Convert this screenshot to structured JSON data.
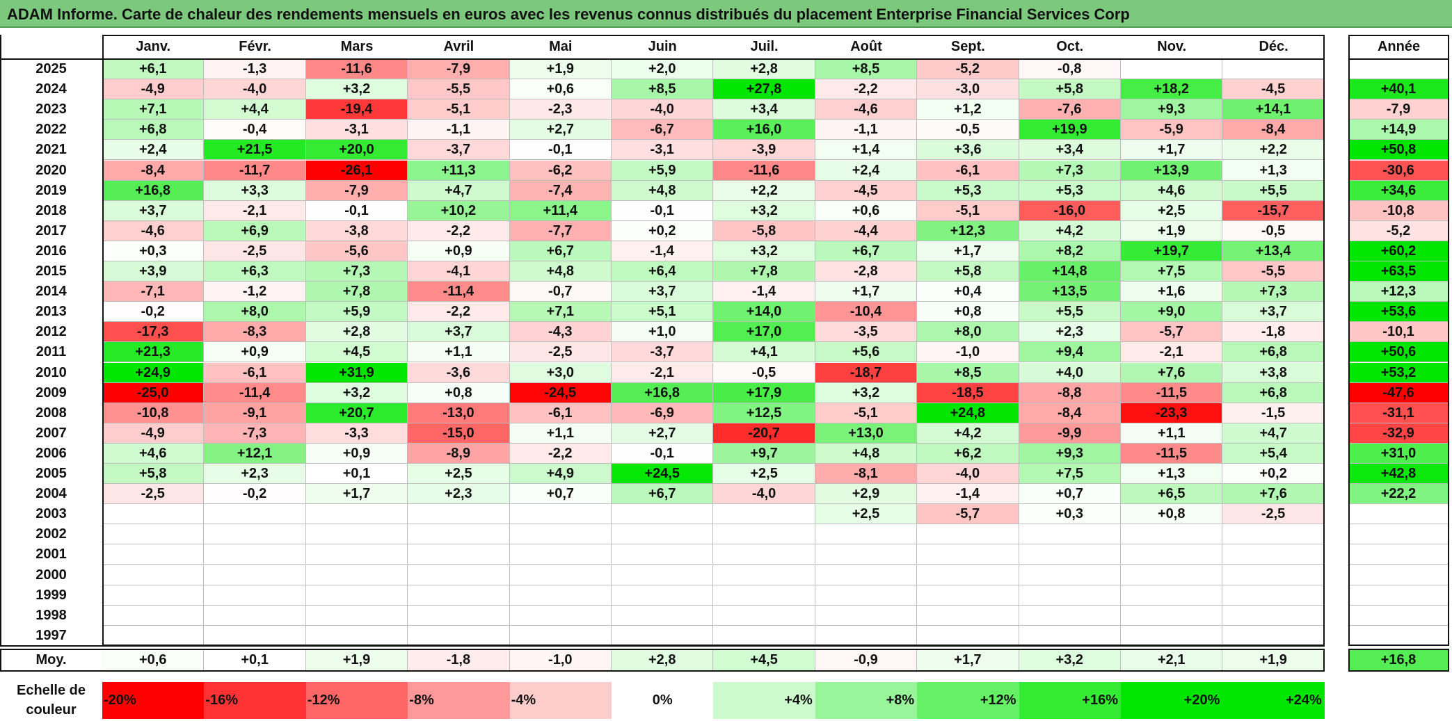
{
  "title": "ADAM Informe. Carte de chaleur des rendements mensuels en euros avec les revenus connus distribués du placement Enterprise Financial Services Corp",
  "chart_data": {
    "type": "heatmap",
    "title": "ADAM Informe. Carte de chaleur des rendements mensuels en euros avec les revenus connus distribués du placement Enterprise Financial Services Corp",
    "columns": [
      "Janv.",
      "Févr.",
      "Mars",
      "Avril",
      "Mai",
      "Juin",
      "Juil.",
      "Août",
      "Sept.",
      "Oct.",
      "Nov.",
      "Déc."
    ],
    "year_column_label": "Année",
    "rows": [
      {
        "year": "2025",
        "values": [
          "+6,1",
          "-1,3",
          "-11,6",
          "-7,9",
          "+1,9",
          "+2,0",
          "+2,8",
          "+8,5",
          "-5,2",
          "-0,8",
          "",
          ""
        ],
        "annual": ""
      },
      {
        "year": "2024",
        "values": [
          "-4,9",
          "-4,0",
          "+3,2",
          "-5,5",
          "+0,6",
          "+8,5",
          "+27,8",
          "-2,2",
          "-3,0",
          "+5,8",
          "+18,2",
          "-4,5"
        ],
        "annual": "+40,1"
      },
      {
        "year": "2023",
        "values": [
          "+7,1",
          "+4,4",
          "-19,4",
          "-5,1",
          "-2,3",
          "-4,0",
          "+3,4",
          "-4,6",
          "+1,2",
          "-7,6",
          "+9,3",
          "+14,1"
        ],
        "annual": "-7,9"
      },
      {
        "year": "2022",
        "values": [
          "+6,8",
          "-0,4",
          "-3,1",
          "-1,1",
          "+2,7",
          "-6,7",
          "+16,0",
          "-1,1",
          "-0,5",
          "+19,9",
          "-5,9",
          "-8,4"
        ],
        "annual": "+14,9"
      },
      {
        "year": "2021",
        "values": [
          "+2,4",
          "+21,5",
          "+20,0",
          "-3,7",
          "-0,1",
          "-3,1",
          "-3,9",
          "+1,4",
          "+3,6",
          "+3,4",
          "+1,7",
          "+2,2"
        ],
        "annual": "+50,8"
      },
      {
        "year": "2020",
        "values": [
          "-8,4",
          "-11,7",
          "-26,1",
          "+11,3",
          "-6,2",
          "+5,9",
          "-11,6",
          "+2,4",
          "-6,1",
          "+7,3",
          "+13,9",
          "+1,3"
        ],
        "annual": "-30,6"
      },
      {
        "year": "2019",
        "values": [
          "+16,8",
          "+3,3",
          "-7,9",
          "+4,7",
          "-7,4",
          "+4,8",
          "+2,2",
          "-4,5",
          "+5,3",
          "+5,3",
          "+4,6",
          "+5,5"
        ],
        "annual": "+34,6"
      },
      {
        "year": "2018",
        "values": [
          "+3,7",
          "-2,1",
          "-0,1",
          "+10,2",
          "+11,4",
          "-0,1",
          "+3,2",
          "+0,6",
          "-5,1",
          "-16,0",
          "+2,5",
          "-15,7"
        ],
        "annual": "-10,8"
      },
      {
        "year": "2017",
        "values": [
          "-4,6",
          "+6,9",
          "-3,8",
          "-2,2",
          "-7,7",
          "+0,2",
          "-5,8",
          "-4,4",
          "+12,3",
          "+4,2",
          "+1,9",
          "-0,5"
        ],
        "annual": "-5,2"
      },
      {
        "year": "2016",
        "values": [
          "+0,3",
          "-2,5",
          "-5,6",
          "+0,9",
          "+6,7",
          "-1,4",
          "+3,2",
          "+6,7",
          "+1,7",
          "+8,2",
          "+19,7",
          "+13,4"
        ],
        "annual": "+60,2"
      },
      {
        "year": "2015",
        "values": [
          "+3,9",
          "+6,3",
          "+7,3",
          "-4,1",
          "+4,8",
          "+6,4",
          "+7,8",
          "-2,8",
          "+5,8",
          "+14,8",
          "+7,5",
          "-5,5"
        ],
        "annual": "+63,5"
      },
      {
        "year": "2014",
        "values": [
          "-7,1",
          "-1,2",
          "+7,8",
          "-11,4",
          "-0,7",
          "+3,7",
          "-1,4",
          "+1,7",
          "+0,4",
          "+13,5",
          "+1,6",
          "+7,3"
        ],
        "annual": "+12,3"
      },
      {
        "year": "2013",
        "values": [
          "-0,2",
          "+8,0",
          "+5,9",
          "-2,2",
          "+7,1",
          "+5,1",
          "+14,0",
          "-10,4",
          "+0,8",
          "+5,5",
          "+9,0",
          "+3,7"
        ],
        "annual": "+53,6"
      },
      {
        "year": "2012",
        "values": [
          "-17,3",
          "-8,3",
          "+2,8",
          "+3,7",
          "-4,3",
          "+1,0",
          "+17,0",
          "-3,5",
          "+8,0",
          "+2,3",
          "-5,7",
          "-1,8"
        ],
        "annual": "-10,1"
      },
      {
        "year": "2011",
        "values": [
          "+21,3",
          "+0,9",
          "+4,5",
          "+1,1",
          "-2,5",
          "-3,7",
          "+4,1",
          "+5,6",
          "-1,0",
          "+9,4",
          "-2,1",
          "+6,8"
        ],
        "annual": "+50,6"
      },
      {
        "year": "2010",
        "values": [
          "+24,9",
          "-6,1",
          "+31,9",
          "-3,6",
          "+3,0",
          "-2,1",
          "-0,5",
          "-18,7",
          "+8,5",
          "+4,0",
          "+7,6",
          "+3,8"
        ],
        "annual": "+53,2"
      },
      {
        "year": "2009",
        "values": [
          "-25,0",
          "-11,4",
          "+3,2",
          "+0,8",
          "-24,5",
          "+16,8",
          "+17,9",
          "+3,2",
          "-18,5",
          "-8,8",
          "-11,5",
          "+6,8"
        ],
        "annual": "-47,6"
      },
      {
        "year": "2008",
        "values": [
          "-10,8",
          "-9,1",
          "+20,7",
          "-13,0",
          "-6,1",
          "-6,9",
          "+12,5",
          "-5,1",
          "+24,8",
          "-8,4",
          "-23,3",
          "-1,5"
        ],
        "annual": "-31,1"
      },
      {
        "year": "2007",
        "values": [
          "-4,9",
          "-7,3",
          "-3,3",
          "-15,0",
          "+1,1",
          "+2,7",
          "-20,7",
          "+13,0",
          "+4,2",
          "-9,9",
          "+1,1",
          "+4,7"
        ],
        "annual": "-32,9"
      },
      {
        "year": "2006",
        "values": [
          "+4,6",
          "+12,1",
          "+0,9",
          "-8,9",
          "-2,2",
          "-0,1",
          "+9,7",
          "+4,8",
          "+6,2",
          "+9,3",
          "-11,5",
          "+5,4"
        ],
        "annual": "+31,0"
      },
      {
        "year": "2005",
        "values": [
          "+5,8",
          "+2,3",
          "+0,1",
          "+2,5",
          "+4,9",
          "+24,5",
          "+2,5",
          "-8,1",
          "-4,0",
          "+7,5",
          "+1,3",
          "+0,2"
        ],
        "annual": "+42,8"
      },
      {
        "year": "2004",
        "values": [
          "-2,5",
          "-0,2",
          "+1,7",
          "+2,3",
          "+0,7",
          "+6,7",
          "-4,0",
          "+2,9",
          "-1,4",
          "+0,7",
          "+6,5",
          "+7,6"
        ],
        "annual": "+22,2"
      },
      {
        "year": "2003",
        "values": [
          "",
          "",
          "",
          "",
          "",
          "",
          "",
          "+2,5",
          "-5,7",
          "+0,3",
          "+0,8",
          "-2,5"
        ],
        "annual": ""
      },
      {
        "year": "2002",
        "values": [
          "",
          "",
          "",
          "",
          "",
          "",
          "",
          "",
          "",
          "",
          "",
          ""
        ],
        "annual": ""
      },
      {
        "year": "2001",
        "values": [
          "",
          "",
          "",
          "",
          "",
          "",
          "",
          "",
          "",
          "",
          "",
          ""
        ],
        "annual": ""
      },
      {
        "year": "2000",
        "values": [
          "",
          "",
          "",
          "",
          "",
          "",
          "",
          "",
          "",
          "",
          "",
          ""
        ],
        "annual": ""
      },
      {
        "year": "1999",
        "values": [
          "",
          "",
          "",
          "",
          "",
          "",
          "",
          "",
          "",
          "",
          "",
          ""
        ],
        "annual": ""
      },
      {
        "year": "1998",
        "values": [
          "",
          "",
          "",
          "",
          "",
          "",
          "",
          "",
          "",
          "",
          "",
          ""
        ],
        "annual": ""
      },
      {
        "year": "1997",
        "values": [
          "",
          "",
          "",
          "",
          "",
          "",
          "",
          "",
          "",
          "",
          "",
          ""
        ],
        "annual": ""
      }
    ],
    "average": {
      "label": "Moy.",
      "values": [
        "+0,6",
        "+0,1",
        "+1,9",
        "-1,8",
        "-1,0",
        "+2,8",
        "+4,5",
        "-0,9",
        "+1,7",
        "+3,2",
        "+2,1",
        "+1,9"
      ],
      "annual": "+16,8"
    },
    "scale": {
      "label_line1": "Echelle de",
      "label_line2": "couleur",
      "items": [
        {
          "label": "-20%",
          "value": -20
        },
        {
          "label": "-16%",
          "value": -16
        },
        {
          "label": "-12%",
          "value": -12
        },
        {
          "label": "-8%",
          "value": -8
        },
        {
          "label": "-4%",
          "value": -4
        },
        {
          "label": "0%",
          "value": 0
        },
        {
          "label": "+4%",
          "value": 4
        },
        {
          "label": "+8%",
          "value": 8
        },
        {
          "label": "+12%",
          "value": 12
        },
        {
          "label": "+16%",
          "value": 16
        },
        {
          "label": "+20%",
          "value": 20
        },
        {
          "label": "+24%",
          "value": 24
        }
      ]
    },
    "colors": {
      "negative_max": "#ff0000",
      "neutral": "#ffffff",
      "positive_max": "#00e600",
      "title_background": "#7cc87c"
    }
  }
}
